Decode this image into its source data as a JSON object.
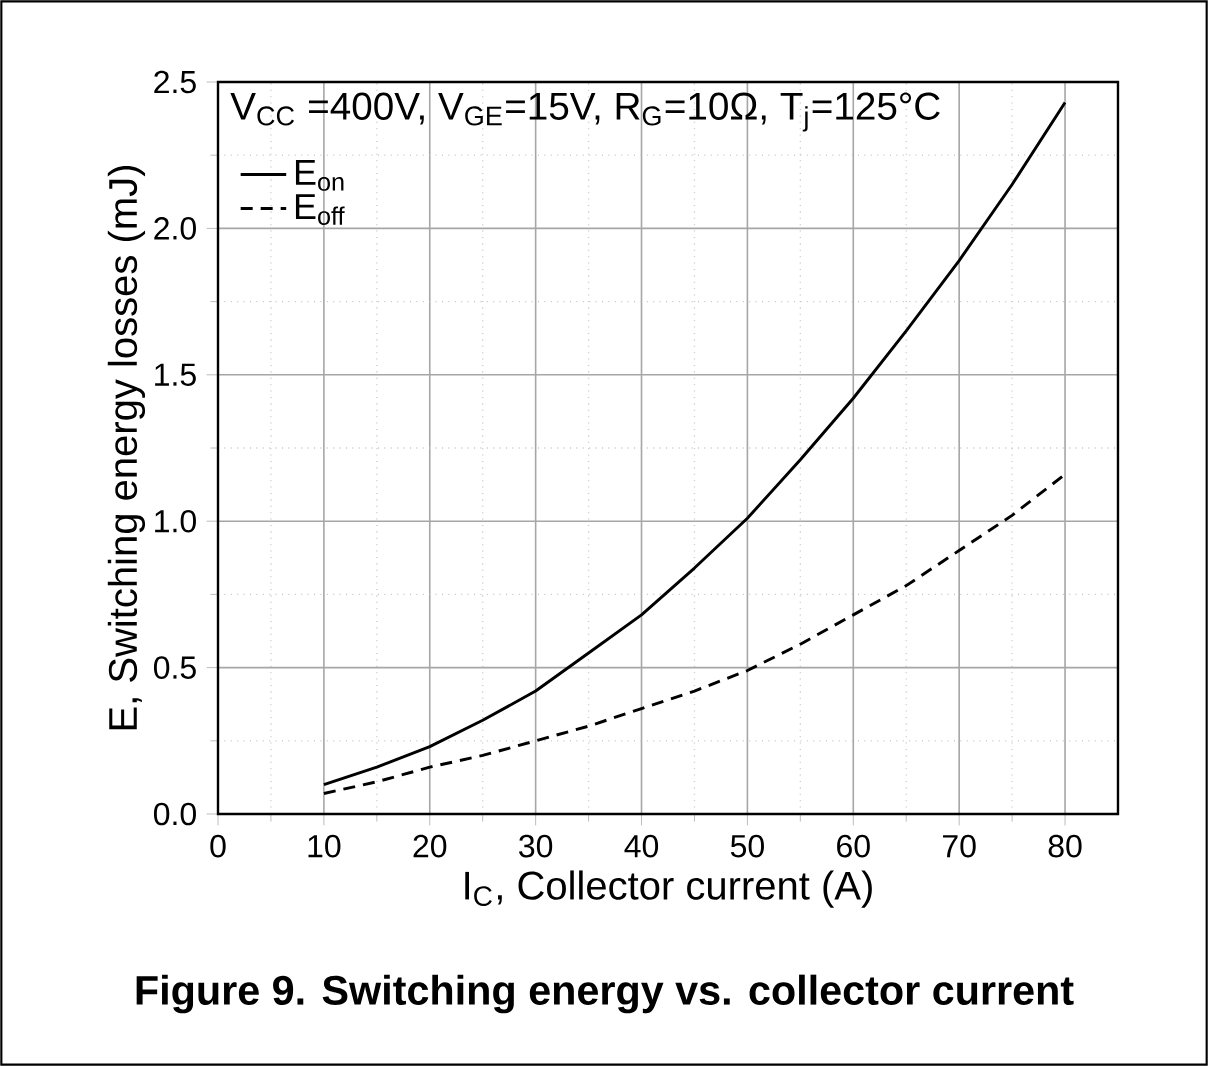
{
  "chart_data": {
    "type": "line",
    "annotations": [
      "V$_{CC}$ =400V, V$_{GE}$=15V, R$_{G}$=10Ω, T$_{j}$=125°C",
      "Figure 9. Switching energy vs. collector current"
    ],
    "xlabel": "I$_{C}$, Collector current (A)",
    "ylabel": "E, Switching energy losses (mJ)",
    "xlim": [
      0,
      85
    ],
    "ylim": [
      0,
      2.5
    ],
    "xticks": [
      0,
      10,
      20,
      30,
      40,
      50,
      60,
      70,
      80
    ],
    "yticks": [
      {
        "value": 0,
        "label": "0.0"
      },
      {
        "value": 0.5,
        "label": "0.5"
      },
      {
        "value": 1,
        "label": "1.0"
      },
      {
        "value": 1.5,
        "label": "1.5"
      },
      {
        "value": 2,
        "label": "2.0"
      },
      {
        "value": 2.5,
        "label": "2.5"
      }
    ],
    "grid": true,
    "legend": "top left",
    "series": [
      {
        "name": "E$_{on}$",
        "color": "#000000",
        "line_style": "solid",
        "x": [
          10,
          15,
          20,
          25,
          30,
          35,
          40,
          45,
          50,
          55,
          60,
          65,
          70,
          75,
          80
        ],
        "values": [
          0.1,
          0.16,
          0.23,
          0.32,
          0.42,
          0.55,
          0.68,
          0.84,
          1.01,
          1.21,
          1.42,
          1.65,
          1.89,
          2.15,
          2.43
        ]
      },
      {
        "name": "E$_{off}$",
        "color": "#000000",
        "line_style": "dashed",
        "x": [
          10,
          15,
          20,
          25,
          30,
          35,
          40,
          45,
          50,
          55,
          60,
          65,
          70,
          75,
          80
        ],
        "values": [
          0.07,
          0.11,
          0.16,
          0.2,
          0.25,
          0.3,
          0.36,
          0.42,
          0.49,
          0.58,
          0.68,
          0.78,
          0.9,
          1.02,
          1.16
        ]
      }
    ]
  }
}
